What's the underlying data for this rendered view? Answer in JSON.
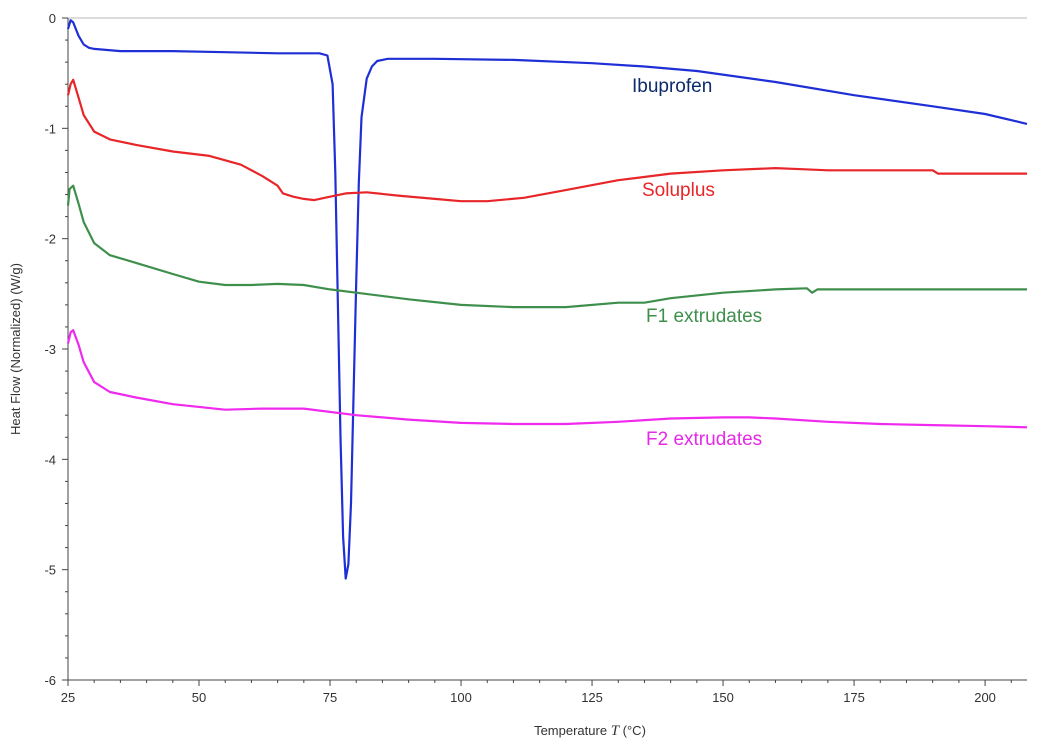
{
  "chart_data": {
    "type": "line",
    "title": "",
    "xlabel": "Temperature",
    "xlabel_symbol": "T",
    "xlabel_unit": "(°C)",
    "ylabel": "Heat Flow (Normalized)  (W/g)",
    "xlim": [
      25,
      208
    ],
    "ylim": [
      -6,
      0
    ],
    "x_ticks": [
      25,
      50,
      75,
      100,
      125,
      150,
      175,
      200
    ],
    "y_ticks": [
      0,
      -1,
      -2,
      -3,
      -4,
      -5,
      -6
    ],
    "grid": false,
    "legend": "inline labels",
    "series": [
      {
        "name": "Ibuprofen",
        "color": "#1f2fd6",
        "label_color": "#0d2a6b",
        "x": [
          25,
          25.5,
          26,
          27,
          28,
          29,
          30,
          35,
          45,
          55,
          65,
          70,
          73,
          74.5,
          75.5,
          76,
          76.5,
          77,
          77.5,
          78,
          78.5,
          79,
          79.5,
          80,
          80.5,
          81,
          82,
          83,
          84,
          86,
          88,
          95,
          110,
          125,
          135,
          145,
          160,
          175,
          190,
          200,
          208
        ],
        "y": [
          -0.1,
          -0.02,
          -0.04,
          -0.16,
          -0.24,
          -0.27,
          -0.28,
          -0.3,
          -0.3,
          -0.31,
          -0.32,
          -0.32,
          -0.32,
          -0.34,
          -0.6,
          -1.4,
          -2.6,
          -3.8,
          -4.7,
          -5.08,
          -4.95,
          -4.4,
          -3.4,
          -2.4,
          -1.5,
          -0.9,
          -0.55,
          -0.44,
          -0.39,
          -0.37,
          -0.37,
          -0.37,
          -0.38,
          -0.41,
          -0.44,
          -0.48,
          -0.58,
          -0.7,
          -0.8,
          -0.87,
          -0.96
        ]
      },
      {
        "name": "Soluplus",
        "color": "#e8262a",
        "label_color": "#e8262a",
        "x": [
          25,
          25.5,
          26,
          27,
          28,
          30,
          33,
          38,
          45,
          52,
          58,
          62,
          65,
          66,
          68,
          70,
          72,
          73,
          75,
          78,
          82,
          88,
          95,
          100,
          105,
          112,
          120,
          130,
          140,
          150,
          160,
          165,
          170,
          180,
          190,
          191,
          200,
          208
        ],
        "y": [
          -0.7,
          -0.6,
          -0.56,
          -0.72,
          -0.88,
          -1.03,
          -1.1,
          -1.15,
          -1.21,
          -1.25,
          -1.33,
          -1.43,
          -1.52,
          -1.59,
          -1.62,
          -1.64,
          -1.65,
          -1.64,
          -1.62,
          -1.59,
          -1.58,
          -1.61,
          -1.64,
          -1.66,
          -1.66,
          -1.63,
          -1.56,
          -1.47,
          -1.41,
          -1.38,
          -1.36,
          -1.37,
          -1.38,
          -1.38,
          -1.38,
          -1.41,
          -1.41,
          -1.41
        ]
      },
      {
        "name": "F1 extrudates",
        "color": "#3f8f4c",
        "label_color": "#3f8f4c",
        "x": [
          25,
          25.3,
          26,
          27,
          28,
          30,
          33,
          38,
          45,
          50,
          55,
          60,
          65,
          70,
          75,
          80,
          90,
          100,
          110,
          120,
          130,
          135,
          140,
          150,
          160,
          166,
          167,
          168,
          170,
          180,
          190,
          200,
          208
        ],
        "y": [
          -1.7,
          -1.55,
          -1.52,
          -1.68,
          -1.85,
          -2.04,
          -2.15,
          -2.22,
          -2.32,
          -2.39,
          -2.42,
          -2.42,
          -2.41,
          -2.42,
          -2.46,
          -2.49,
          -2.55,
          -2.6,
          -2.62,
          -2.62,
          -2.58,
          -2.58,
          -2.54,
          -2.49,
          -2.46,
          -2.45,
          -2.49,
          -2.46,
          -2.46,
          -2.46,
          -2.46,
          -2.46,
          -2.46
        ]
      },
      {
        "name": "F2 extrudates",
        "color": "#f029ee",
        "label_color": "#e629e6",
        "x": [
          25,
          25.5,
          26,
          27,
          28,
          30,
          33,
          38,
          45,
          55,
          62,
          70,
          80,
          90,
          100,
          110,
          120,
          130,
          140,
          150,
          155,
          160,
          170,
          180,
          190,
          200,
          208
        ],
        "y": [
          -2.95,
          -2.85,
          -2.83,
          -2.96,
          -3.12,
          -3.3,
          -3.39,
          -3.44,
          -3.5,
          -3.55,
          -3.54,
          -3.54,
          -3.6,
          -3.64,
          -3.67,
          -3.68,
          -3.68,
          -3.66,
          -3.63,
          -3.62,
          -3.62,
          -3.63,
          -3.66,
          -3.68,
          -3.69,
          -3.7,
          -3.71
        ]
      }
    ]
  }
}
